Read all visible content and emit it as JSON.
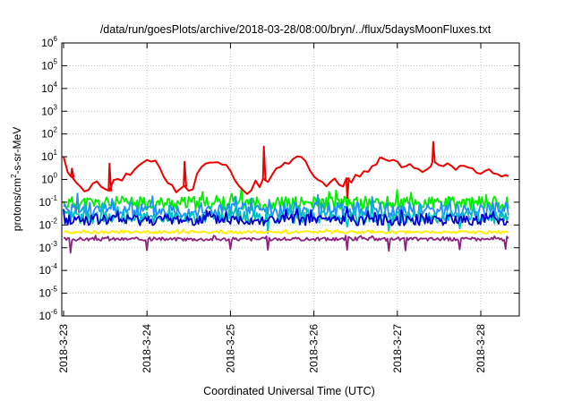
{
  "chart_data": {
    "type": "line",
    "title": "/data/run/goesPlots/archive/2018-03-28/08:00/bryn/../flux/5daysMoonFluxes.txt",
    "xlabel": "Coordinated Universal Time (UTC)",
    "ylabel": {
      "pre": "protons/cm",
      "sup": "2",
      "post": "-s-sr-MeV"
    },
    "y_scale": "log",
    "ylim": [
      1e-06,
      1000000.0
    ],
    "xlim": [
      "2018-03-23 00:00",
      "2018-03-28 08:00"
    ],
    "grid": true,
    "legend": "none",
    "x_ticks": [
      "2018-3-23",
      "2018-3-24",
      "2018-3-25",
      "2018-3-26",
      "2018-3-27",
      "2018-3-28"
    ],
    "y_ticks": [
      {
        "base": "10",
        "exp": "-6"
      },
      {
        "base": "10",
        "exp": "-5"
      },
      {
        "base": "10",
        "exp": "-4"
      },
      {
        "base": "10",
        "exp": "-3"
      },
      {
        "base": "10",
        "exp": "-2"
      },
      {
        "base": "10",
        "exp": "-1"
      },
      {
        "base": "10",
        "exp": "0"
      },
      {
        "base": "10",
        "exp": "1"
      },
      {
        "base": "10",
        "exp": "2"
      },
      {
        "base": "10",
        "exp": "3"
      },
      {
        "base": "10",
        "exp": "4"
      },
      {
        "base": "10",
        "exp": "5"
      },
      {
        "base": "10",
        "exp": "6"
      }
    ],
    "series": [
      {
        "color": "#ee0000",
        "x": [
          0,
          0.05,
          0.1,
          0.15,
          0.2,
          0.25,
          0.3,
          0.35,
          0.4,
          0.45,
          0.5,
          0.55,
          0.6,
          0.65,
          0.7,
          0.75,
          0.8,
          0.85,
          0.9,
          0.95,
          1.0,
          1.05,
          1.1,
          1.15,
          1.2,
          1.25,
          1.3,
          1.35,
          1.4,
          1.45,
          1.5,
          1.55,
          1.6,
          1.65,
          1.7,
          1.75,
          1.8,
          1.85,
          1.9,
          1.95,
          2.0,
          2.05,
          2.1,
          2.15,
          2.2,
          2.25,
          2.3,
          2.35,
          2.4,
          2.45,
          2.5,
          2.55,
          2.6,
          2.65,
          2.7,
          2.75,
          2.8,
          2.85,
          2.9,
          2.95,
          3.0,
          3.05,
          3.1,
          3.15,
          3.2,
          3.25,
          3.3,
          3.35,
          3.4,
          3.45,
          3.5,
          3.55,
          3.6,
          3.65,
          3.7,
          3.75,
          3.8,
          3.85,
          3.9,
          3.95,
          4.0,
          4.05,
          4.1,
          4.15,
          4.2,
          4.25,
          4.3,
          4.35,
          4.4,
          4.45,
          4.5,
          4.55,
          4.6,
          4.65,
          4.7,
          4.75,
          4.8,
          4.85,
          4.9,
          4.95,
          5.0,
          5.05,
          5.1,
          5.15,
          5.2,
          5.25,
          5.3,
          5.33
        ],
        "y": [
          10,
          2.0,
          1.5,
          0.8,
          0.5,
          0.3,
          0.4,
          0.6,
          0.8,
          0.5,
          0.4,
          0.3,
          0.9,
          1.2,
          0.9,
          2.0,
          1.5,
          3.0,
          4.0,
          5.5,
          8.0,
          7.0,
          6.0,
          3.0,
          1.5,
          0.7,
          0.5,
          0.3,
          0.4,
          0.5,
          0.3,
          0.4,
          2.0,
          3.0,
          5.0,
          6.0,
          5.5,
          6.0,
          5.0,
          4.0,
          2.5,
          1.0,
          0.6,
          0.3,
          0.25,
          0.3,
          0.9,
          0.5,
          1.0,
          0.8,
          1.5,
          3.0,
          4.0,
          6.0,
          5.0,
          9.0,
          12.0,
          10.0,
          6.0,
          2.5,
          1.2,
          1.0,
          0.8,
          0.5,
          0.8,
          1.0,
          0.6,
          0.5,
          1.2,
          0.8,
          1.5,
          1.5,
          2.5,
          2.0,
          3.5,
          4.0,
          8.0,
          7.0,
          6.0,
          7.0,
          6.0,
          4.0,
          4.0,
          5.0,
          3.5,
          3.0,
          2.0,
          2.5,
          4.0,
          5.0,
          5.0,
          4.0,
          5.0,
          4.0,
          3.0,
          3.5,
          4.0,
          3.0,
          3.0,
          2.0,
          2.0,
          2.2,
          2.5,
          2.0,
          2.0,
          1.5,
          1.5,
          1.3
        ],
        "spikes": [
          {
            "x": 0.1,
            "y": 3.0
          },
          {
            "x": 0.55,
            "y": 5.0
          },
          {
            "x": 1.45,
            "y": 6.0
          },
          {
            "x": 2.4,
            "y": 28.0
          },
          {
            "x": 3.4,
            "y": 0.15
          },
          {
            "x": 3.8,
            "y": 9.0
          },
          {
            "x": 4.43,
            "y": 45.0
          }
        ]
      },
      {
        "color": "#00ee00",
        "center": 0.09,
        "spread": 0.6,
        "seed": 11,
        "dips": []
      },
      {
        "color": "#1e90ff",
        "center": 0.045,
        "spread": 0.7,
        "seed": 23,
        "dips": [
          0.08,
          2.5,
          3.9,
          4.75
        ]
      },
      {
        "color": "#00c0c0",
        "center": 0.022,
        "spread": 0.55,
        "seed": 37,
        "dips": [
          0.08,
          1.5,
          2.45,
          3.4,
          3.9,
          4.75
        ]
      },
      {
        "color": "#0000cc",
        "center": 0.017,
        "spread": 0.5,
        "seed": 41,
        "dips": []
      },
      {
        "color": "#ffee00",
        "center": 0.0048,
        "spread": 0.12,
        "seed": 53,
        "dips": []
      },
      {
        "color": "#8e2080",
        "center": 0.0024,
        "spread": 0.15,
        "seed": 67,
        "dips": [
          0.08,
          1.0,
          2.0,
          2.45,
          3.4,
          3.9,
          4.1,
          4.75,
          5.3
        ],
        "deep_dip": {
          "x": 0.08,
          "y": 0.0006
        }
      }
    ]
  }
}
